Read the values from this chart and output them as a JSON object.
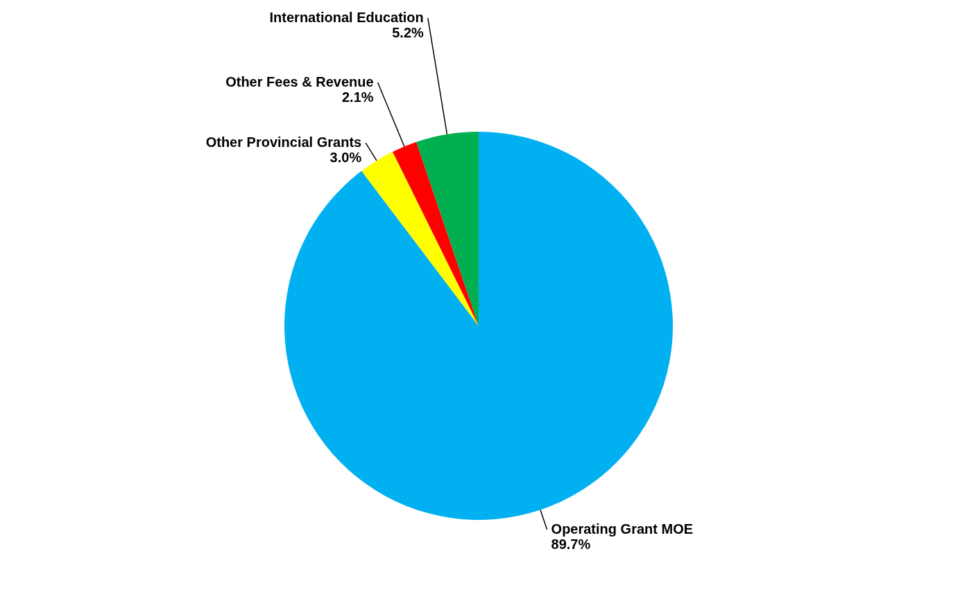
{
  "chart_data": {
    "type": "pie",
    "categories": [
      "Operating Grant MOE",
      "Other Provincial Grants",
      "Other Fees & Revenue",
      "International Education"
    ],
    "values": [
      89.7,
      3.0,
      2.1,
      5.2
    ],
    "colors": [
      "#00b0f0",
      "#ffff00",
      "#ff0000",
      "#00b050"
    ],
    "value_labels": [
      "89.7%",
      "3.0%",
      "2.1%",
      "5.2%"
    ]
  }
}
